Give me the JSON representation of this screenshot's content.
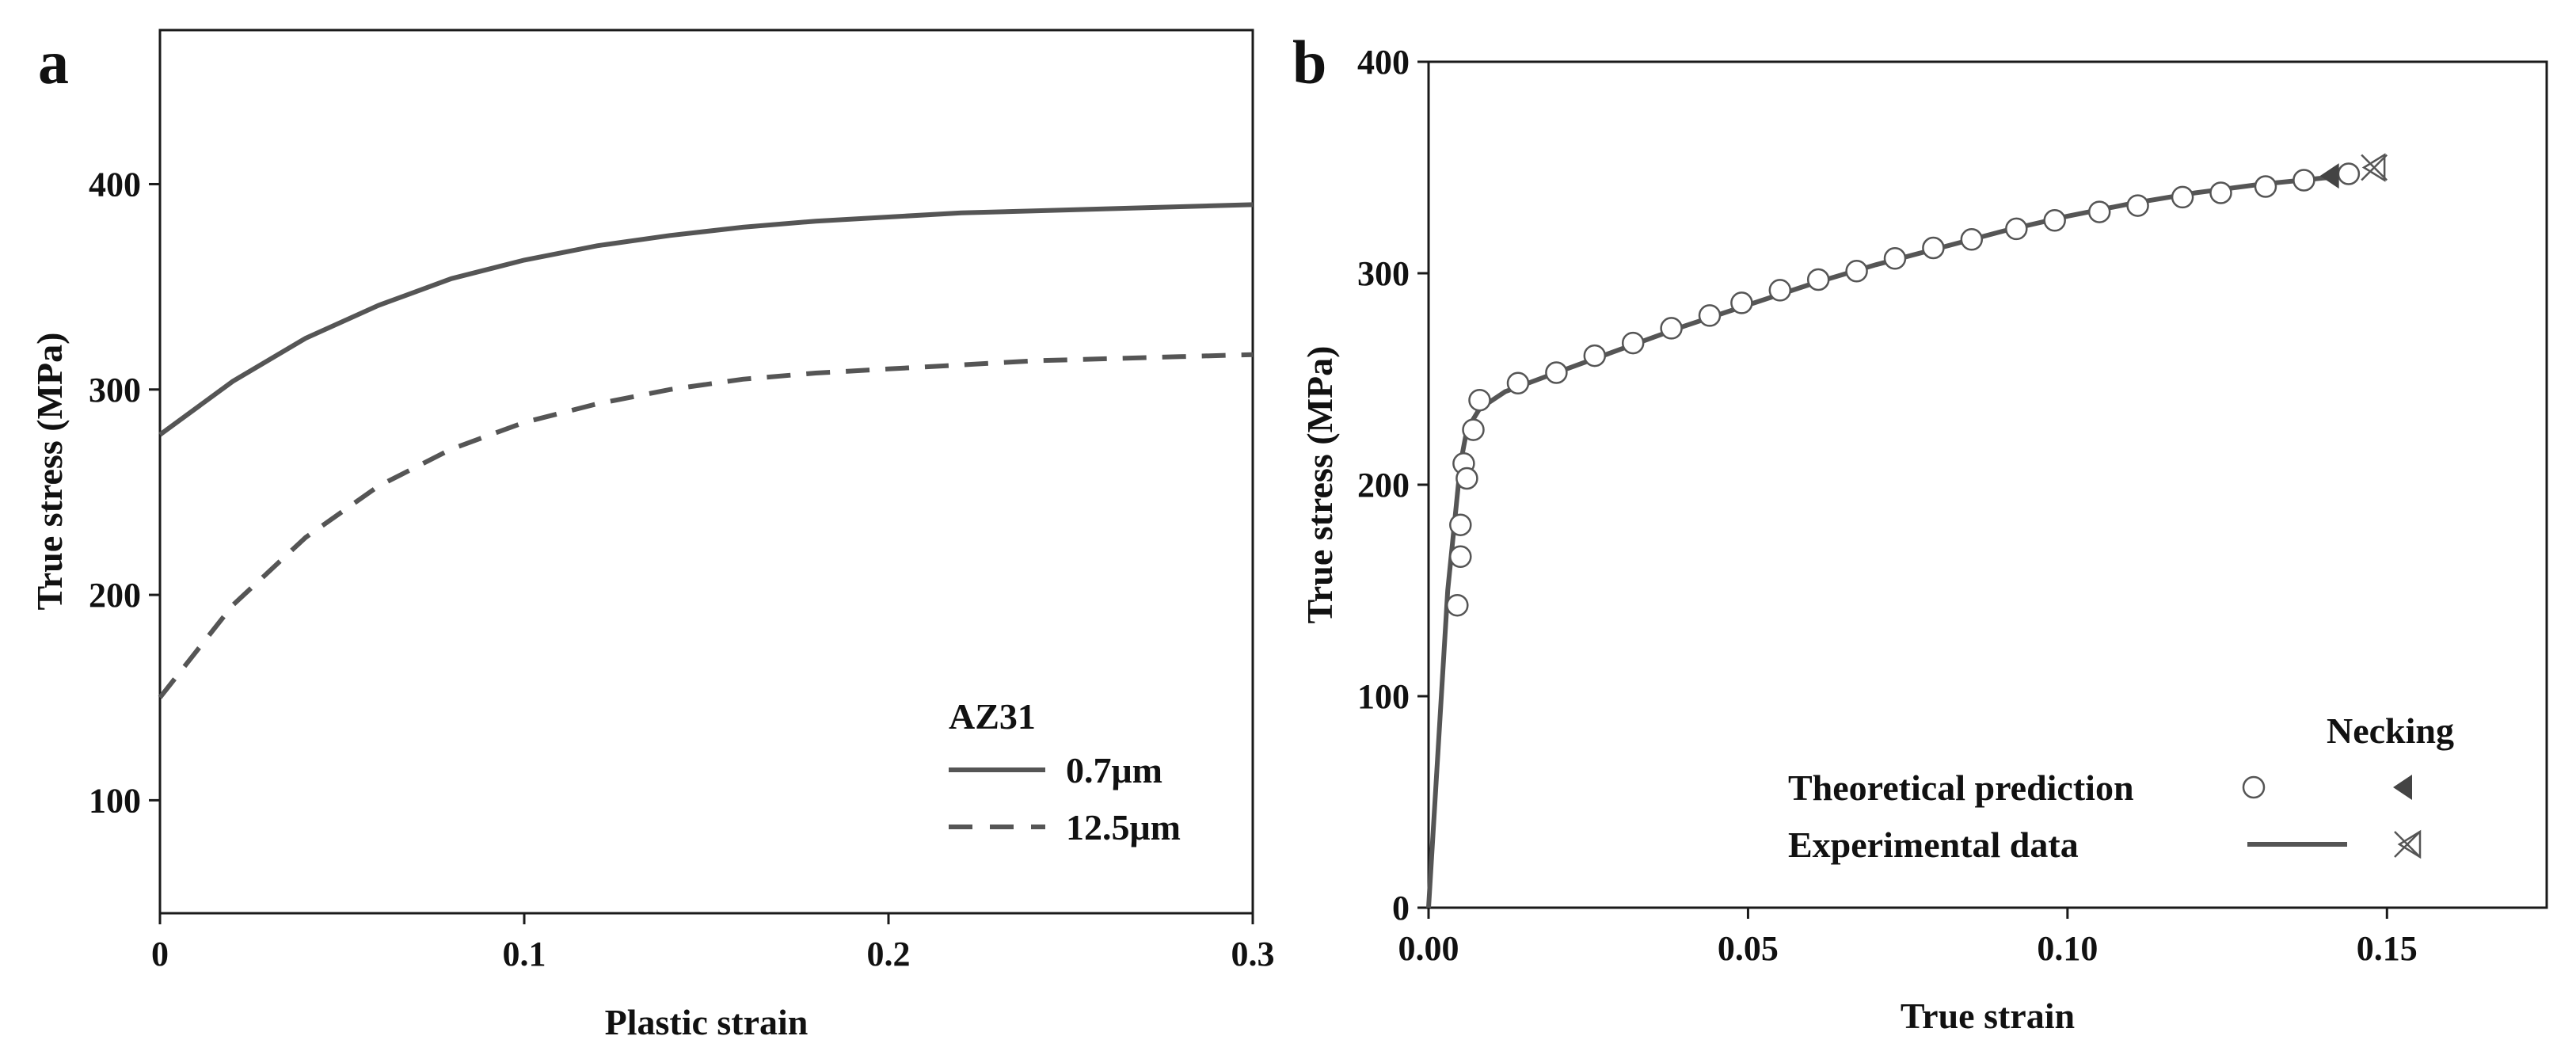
{
  "chart_data": [
    {
      "panel_label": "a",
      "type": "line",
      "xlabel": "Plastic strain",
      "ylabel": "True stress (MPa)",
      "xlim": [
        0,
        0.3
      ],
      "ylim": [
        45,
        475
      ],
      "xticks": [
        0,
        0.1,
        0.2,
        0.3
      ],
      "xtick_labels": [
        "0",
        "0.1",
        "0.2",
        "0.3"
      ],
      "yticks": [
        100,
        200,
        300,
        400
      ],
      "ytick_labels": [
        "100",
        "200",
        "300",
        "400"
      ],
      "legend_title": "AZ31",
      "legend_position": "bottom-right",
      "series": [
        {
          "name": "0.7μm",
          "style": "solid",
          "color": "#555555",
          "x": [
            0,
            0.02,
            0.04,
            0.06,
            0.08,
            0.1,
            0.12,
            0.14,
            0.16,
            0.18,
            0.2,
            0.22,
            0.24,
            0.26,
            0.28,
            0.3
          ],
          "y": [
            278,
            304,
            325,
            341,
            354,
            363,
            370,
            375,
            379,
            382,
            384,
            386,
            387,
            388,
            389,
            390
          ]
        },
        {
          "name": "12.5μm",
          "style": "dashed",
          "color": "#555555",
          "x": [
            0,
            0.02,
            0.04,
            0.06,
            0.08,
            0.1,
            0.12,
            0.14,
            0.16,
            0.18,
            0.2,
            0.22,
            0.24,
            0.26,
            0.28,
            0.3
          ],
          "y": [
            150,
            195,
            228,
            253,
            271,
            284,
            293,
            300,
            305,
            308,
            310,
            312,
            314,
            315,
            316,
            317
          ]
        }
      ]
    },
    {
      "panel_label": "b",
      "type": "line",
      "xlabel": "True strain",
      "ylabel": "True stress (MPa)",
      "xlim": [
        0,
        0.175
      ],
      "ylim": [
        0,
        400
      ],
      "xticks": [
        0,
        0.05,
        0.1,
        0.15
      ],
      "xtick_labels": [
        "0.00",
        "0.05",
        "0.10",
        "0.15"
      ],
      "yticks": [
        0,
        100,
        200,
        300,
        400
      ],
      "ytick_labels": [
        "0",
        "100",
        "200",
        "300",
        "400"
      ],
      "legend_title": "Necking",
      "legend_position": "bottom-right",
      "experimental": {
        "name": "Experimental data",
        "color": "#555555",
        "x": [
          0,
          0.003,
          0.005,
          0.006,
          0.008,
          0.012,
          0.02,
          0.03,
          0.04,
          0.05,
          0.06,
          0.07,
          0.08,
          0.09,
          0.1,
          0.11,
          0.12,
          0.13,
          0.14,
          0.145
        ],
        "y": [
          0,
          150,
          210,
          226,
          236,
          244,
          253,
          264,
          275,
          285,
          295,
          304,
          312,
          320,
          327,
          333,
          338,
          342,
          345,
          346
        ],
        "necking_point": [
          0.148,
          350
        ]
      },
      "theoretical": {
        "name": "Theoretical prediction",
        "x": [
          0.0045,
          0.005,
          0.005,
          0.0055,
          0.006,
          0.007,
          0.008,
          0.014,
          0.02,
          0.026,
          0.032,
          0.038,
          0.044,
          0.049,
          0.055,
          0.061,
          0.067,
          0.073,
          0.079,
          0.085,
          0.092,
          0.098,
          0.105,
          0.111,
          0.118,
          0.124,
          0.131,
          0.137,
          0.144
        ],
        "y": [
          143,
          166,
          181,
          210,
          203,
          226,
          240,
          248,
          253,
          261,
          267,
          274,
          280,
          286,
          292,
          297,
          301,
          307,
          312,
          316,
          321,
          325,
          329,
          332,
          336,
          338,
          341,
          344,
          347
        ],
        "necking_point": [
          0.141,
          346
        ]
      }
    }
  ]
}
